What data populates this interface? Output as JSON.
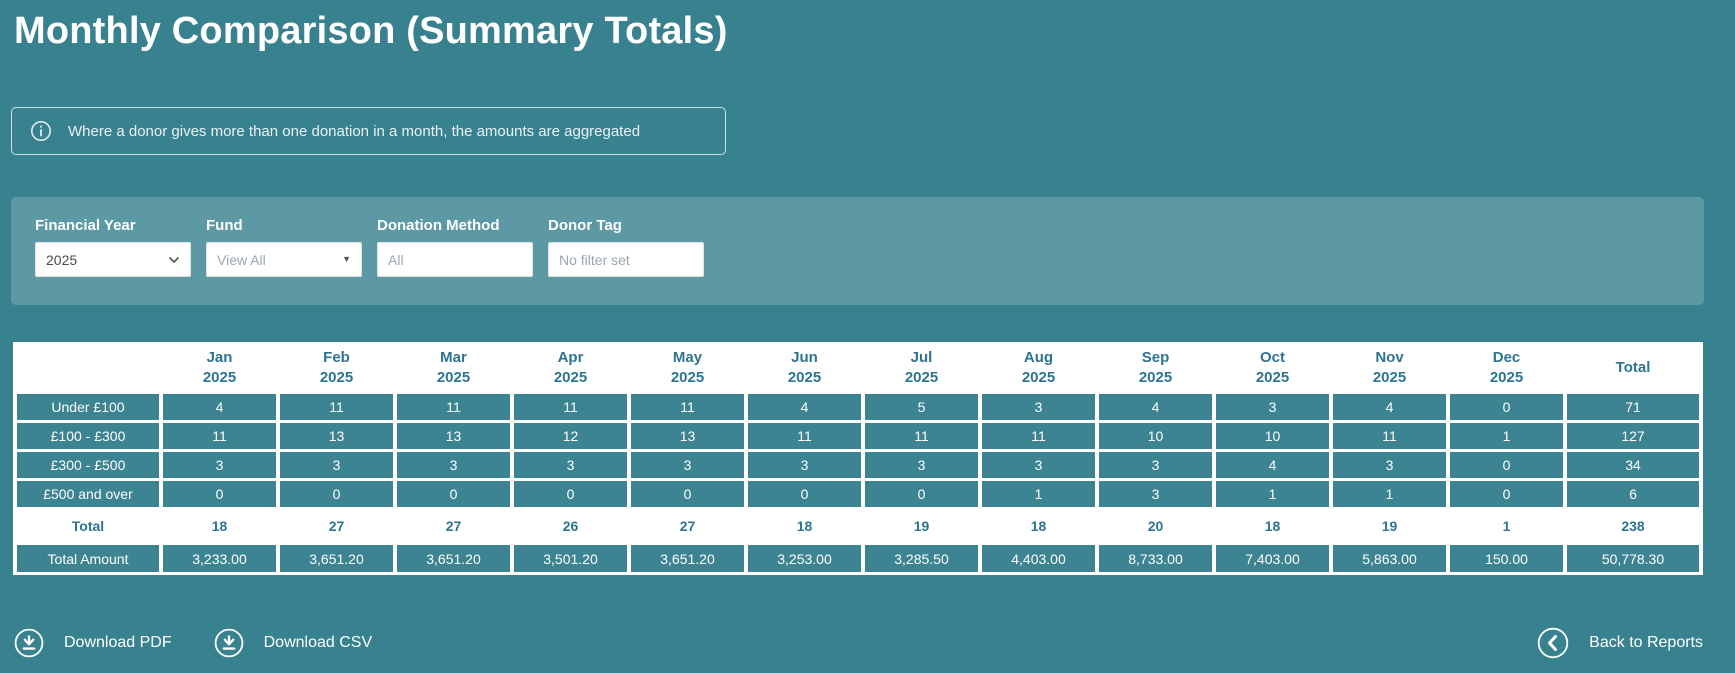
{
  "page": {
    "title": "Monthly Comparison (Summary Totals)",
    "info_note": "Where a donor gives more than one donation in a month, the amounts are aggregated"
  },
  "filters": {
    "financial_year": {
      "label": "Financial Year",
      "value": "2025"
    },
    "fund": {
      "label": "Fund",
      "value": "View All"
    },
    "donation_method": {
      "label": "Donation Method",
      "placeholder": "All"
    },
    "donor_tag": {
      "label": "Donor Tag",
      "placeholder": "No filter set"
    }
  },
  "table": {
    "months": [
      "Jan",
      "Feb",
      "Mar",
      "Apr",
      "May",
      "Jun",
      "Jul",
      "Aug",
      "Sep",
      "Oct",
      "Nov",
      "Dec"
    ],
    "year": "2025",
    "total_header": "Total",
    "rows": [
      {
        "label": "Under £100",
        "values": [
          "4",
          "11",
          "11",
          "11",
          "11",
          "4",
          "5",
          "3",
          "4",
          "3",
          "4",
          "0"
        ],
        "total": "71"
      },
      {
        "label": "£100 - £300",
        "values": [
          "11",
          "13",
          "13",
          "12",
          "13",
          "11",
          "11",
          "11",
          "10",
          "10",
          "11",
          "1"
        ],
        "total": "127"
      },
      {
        "label": "£300 - £500",
        "values": [
          "3",
          "3",
          "3",
          "3",
          "3",
          "3",
          "3",
          "3",
          "3",
          "4",
          "3",
          "0"
        ],
        "total": "34"
      },
      {
        "label": "£500 and over",
        "values": [
          "0",
          "0",
          "0",
          "0",
          "0",
          "0",
          "0",
          "1",
          "3",
          "1",
          "1",
          "0"
        ],
        "total": "6"
      }
    ],
    "totals_row": {
      "label": "Total",
      "values": [
        "18",
        "27",
        "27",
        "26",
        "27",
        "18",
        "19",
        "18",
        "20",
        "18",
        "19",
        "1"
      ],
      "total": "238"
    },
    "amount_row": {
      "label": "Total Amount",
      "values": [
        "3,233.00",
        "3,651.20",
        "3,651.20",
        "3,501.20",
        "3,651.20",
        "3,253.00",
        "3,285.50",
        "4,403.00",
        "8,733.00",
        "7,403.00",
        "5,863.00",
        "150.00"
      ],
      "total": "50,778.30"
    }
  },
  "actions": {
    "download_pdf": "Download PDF",
    "download_csv": "Download CSV",
    "back_to_reports": "Back to Reports"
  },
  "colors": {
    "background": "#38818f",
    "filter_panel": "#5d99a4",
    "table_cell": "#3d8492",
    "teal_text": "#2e7490",
    "white_text": "#ffffff"
  }
}
